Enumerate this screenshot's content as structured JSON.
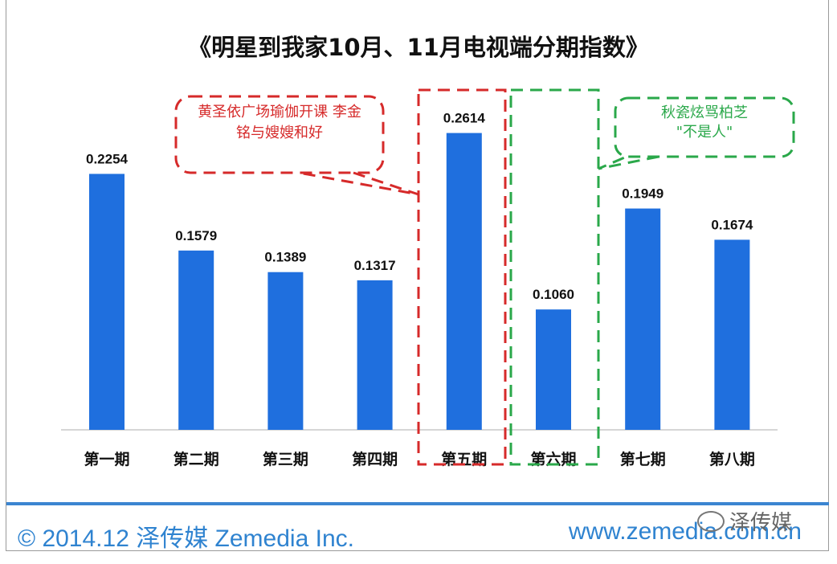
{
  "title": "《明星到我家10月、11月电视端分期指数》",
  "chart_data": {
    "type": "bar",
    "categories": [
      "第一期",
      "第二期",
      "第三期",
      "第四期",
      "第五期",
      "第六期",
      "第七期",
      "第八期"
    ],
    "values": [
      0.2254,
      0.1579,
      0.1389,
      0.1317,
      0.2614,
      0.106,
      0.1949,
      0.1674
    ],
    "value_labels": [
      "0.2254",
      "0.1579",
      "0.1389",
      "0.1317",
      "0.2614",
      "0.1060",
      "0.1949",
      "0.1674"
    ],
    "ylim": [
      0,
      0.3
    ],
    "bar_color": "#1f6fde",
    "annotations": [
      {
        "episode": "第五期",
        "color": "#d62a2a",
        "lines": [
          "黄圣依广场瑜伽开课 李金",
          "铭与嫂嫂和好"
        ]
      },
      {
        "episode": "第六期",
        "color": "#2aa84a",
        "lines": [
          "秋瓷炫骂柏芝",
          "\"不是人\""
        ]
      }
    ]
  },
  "footer": {
    "copyright": "© 2014.12 泽传媒 Zemedia Inc.",
    "website": "www.zemedia.com.cn",
    "watermark": "泽传媒",
    "accent_color": "#2f83d0"
  }
}
